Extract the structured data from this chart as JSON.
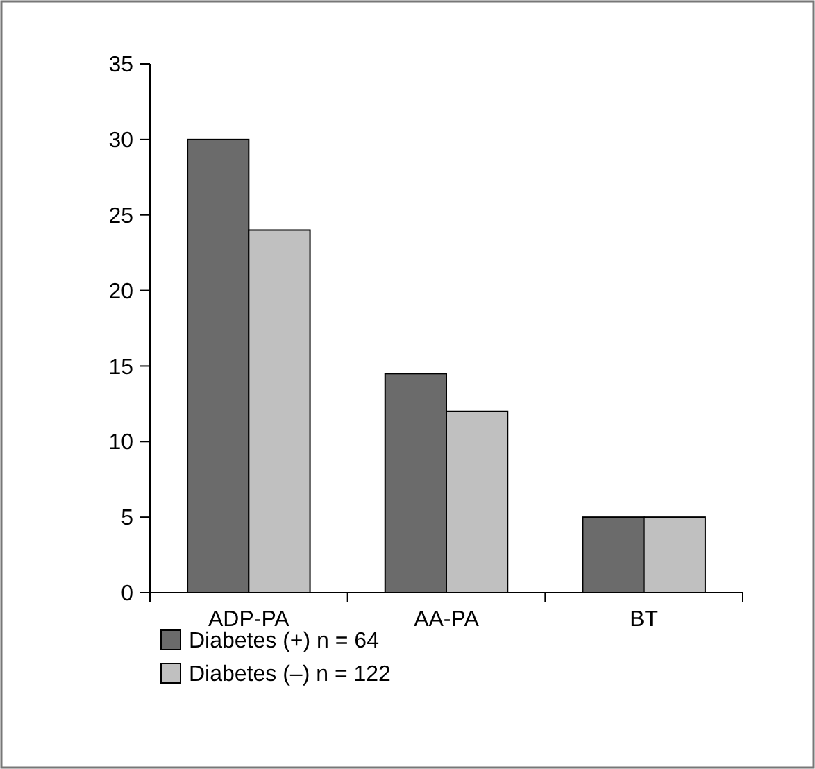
{
  "chart_data": {
    "type": "bar",
    "categories": [
      "ADP-PA",
      "AA-PA",
      "BT"
    ],
    "series": [
      {
        "name": "Diabetes (+) n = 64",
        "color": "#6b6b6b",
        "values": [
          30,
          14.5,
          5
        ]
      },
      {
        "name": "Diabetes (–) n = 122",
        "color": "#c0c0c0",
        "values": [
          24,
          12,
          5
        ]
      }
    ],
    "ylim": [
      0,
      35
    ],
    "yticks": [
      0,
      5,
      10,
      15,
      20,
      25,
      30,
      35
    ],
    "grid": false,
    "legend": "bottom left"
  }
}
